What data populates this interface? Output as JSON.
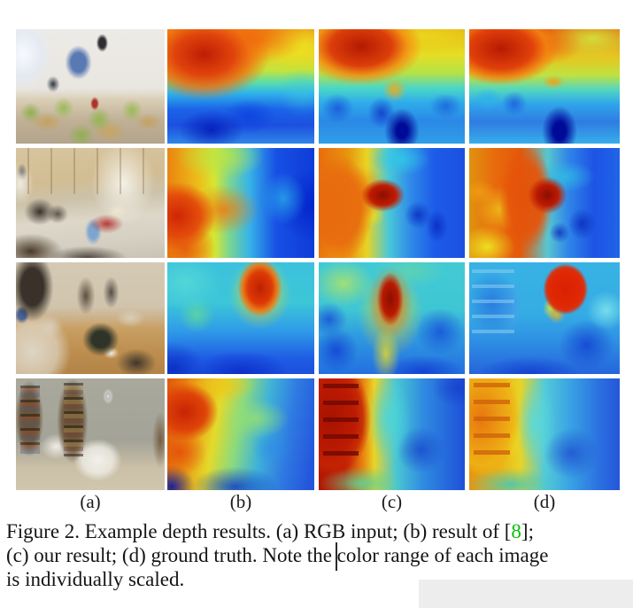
{
  "figure": {
    "column_labels": [
      "(a)",
      "(b)",
      "(c)",
      "(d)"
    ]
  },
  "caption": {
    "line1_pre": "Figure 2. Example depth results. (a) RGB input; (b) result of [",
    "ref_number": "8",
    "line1_post": "];",
    "line2": "(c) our result; (d) ground truth. Note the color range of each image",
    "line3": "is individually scaled."
  },
  "colors": {
    "citation_green": "#00c000",
    "page_background": "#ffffff"
  }
}
